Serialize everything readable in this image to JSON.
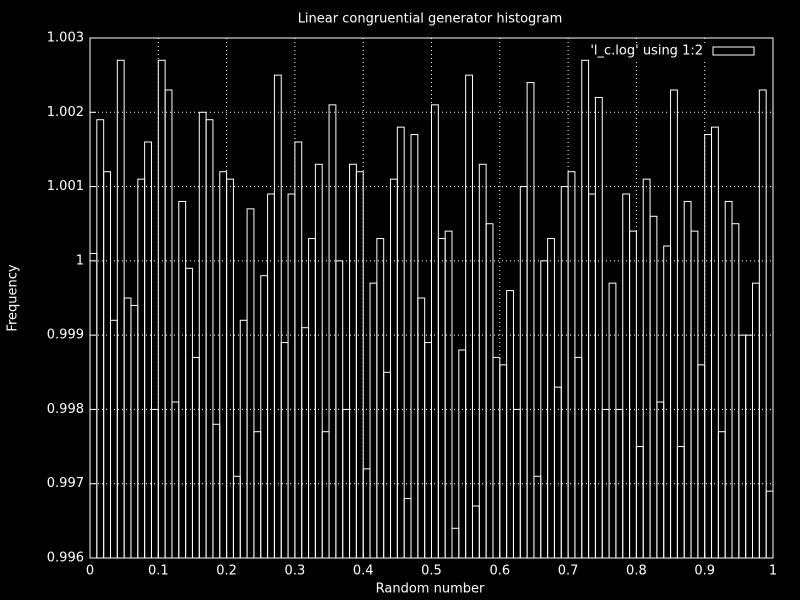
{
  "chart_data": {
    "type": "histogram",
    "title": "Linear congruential generator histogram",
    "x_label": "Random number",
    "y_label": "Frequency",
    "series": [
      {
        "name": "'l_c.log' using 1:2",
        "color": "#ffffff",
        "values": [
          1.0001,
          1.0019,
          1.0012,
          0.9992,
          1.0027,
          0.9995,
          0.9994,
          1.0011,
          1.0016,
          0.998,
          1.0027,
          1.0023,
          0.9981,
          1.0008,
          0.9999,
          0.9987,
          1.002,
          1.0019,
          0.9978,
          1.0012,
          1.0011,
          0.9971,
          0.9992,
          1.0007,
          0.9977,
          0.9998,
          1.0009,
          1.0025,
          0.9989,
          1.0009,
          1.0016,
          0.9991,
          1.0003,
          1.0013,
          0.9977,
          1.0021,
          1.0,
          0.998,
          1.0013,
          1.0012,
          0.9972,
          0.9997,
          1.0003,
          0.9985,
          1.0011,
          1.0018,
          0.9968,
          1.0017,
          0.9995,
          0.9989,
          1.0021,
          1.0003,
          1.0004,
          0.9964,
          0.9988,
          1.0025,
          0.9967,
          1.0013,
          1.0005,
          0.9987,
          0.9986,
          0.9996,
          0.998,
          1.001,
          1.0024,
          0.9971,
          1.0,
          1.0003,
          0.9983,
          1.001,
          1.0012,
          0.9987,
          1.0027,
          1.0009,
          1.0022,
          0.998,
          0.9997,
          0.998,
          1.0009,
          1.0004,
          0.9975,
          1.0011,
          1.0006,
          0.9981,
          1.0002,
          1.0023,
          0.9975,
          1.0008,
          1.0004,
          0.9986,
          1.0017,
          1.0018,
          0.9977,
          1.0008,
          1.0005,
          0.999,
          0.999,
          0.9997,
          1.0023,
          0.9969
        ]
      }
    ],
    "bins": [
      0,
      0.01,
      0.02,
      0.03,
      0.04,
      0.05,
      0.06,
      0.07,
      0.08,
      0.09,
      0.1,
      0.11,
      0.12,
      0.13,
      0.14,
      0.15,
      0.16,
      0.17,
      0.18,
      0.19,
      0.2,
      0.21,
      0.22,
      0.23,
      0.24,
      0.25,
      0.26,
      0.27,
      0.28,
      0.29,
      0.3,
      0.31,
      0.32,
      0.33,
      0.34,
      0.35,
      0.36,
      0.37,
      0.38,
      0.39,
      0.4,
      0.41,
      0.42,
      0.43,
      0.44,
      0.45,
      0.46,
      0.47,
      0.48,
      0.49,
      0.5,
      0.51,
      0.52,
      0.53,
      0.54,
      0.55,
      0.56,
      0.57,
      0.58,
      0.59,
      0.6,
      0.61,
      0.62,
      0.63,
      0.64,
      0.65,
      0.66,
      0.67,
      0.68,
      0.69,
      0.7,
      0.71,
      0.72,
      0.73,
      0.74,
      0.75,
      0.76,
      0.77,
      0.78,
      0.79,
      0.8,
      0.81,
      0.82,
      0.83,
      0.84,
      0.85,
      0.86,
      0.87,
      0.88,
      0.89,
      0.9,
      0.91,
      0.92,
      0.93,
      0.94,
      0.95,
      0.96,
      0.97,
      0.98,
      0.99,
      1
    ],
    "xlim": [
      0,
      1
    ],
    "xticks": [
      0,
      0.1,
      0.2,
      0.3,
      0.4,
      0.5,
      0.6,
      0.7,
      0.8,
      0.9,
      1
    ],
    "ylim": [
      0.996,
      1.003
    ],
    "yticks": [
      0.996,
      0.997,
      0.998,
      0.999,
      1,
      1.001,
      1.002,
      1.003
    ],
    "grid": true,
    "legend": "top-right"
  }
}
